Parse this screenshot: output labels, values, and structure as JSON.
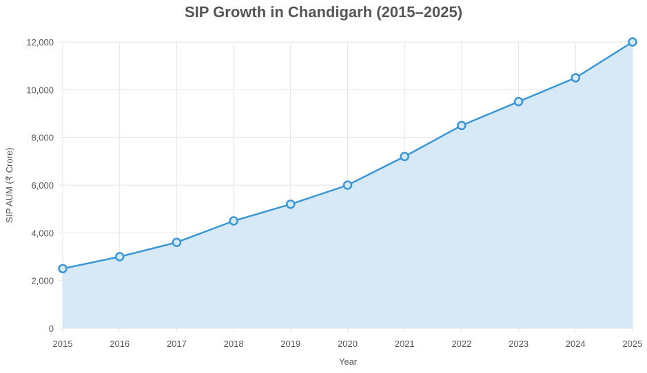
{
  "chart_data": {
    "type": "area",
    "title": "SIP Growth in Chandigarh (2015–2025)",
    "xlabel": "Year",
    "ylabel": "SIP AUM (₹ Crore)",
    "x": [
      "2015",
      "2016",
      "2017",
      "2018",
      "2019",
      "2020",
      "2021",
      "2022",
      "2023",
      "2024",
      "2025"
    ],
    "series": [
      {
        "values": [
          2500,
          3000,
          3600,
          4500,
          5200,
          6000,
          7200,
          8500,
          9500,
          10500,
          12000
        ]
      }
    ],
    "yticks": [
      "0",
      "2,000",
      "4,000",
      "6,000",
      "8,000",
      "10,000",
      "12,000"
    ],
    "ylim": [
      0,
      12000
    ],
    "grid": true,
    "legend": "none",
    "colors": {
      "line": "#3a97d4",
      "fill": "#d5e8f6",
      "grid": "#e6e6e6"
    }
  }
}
